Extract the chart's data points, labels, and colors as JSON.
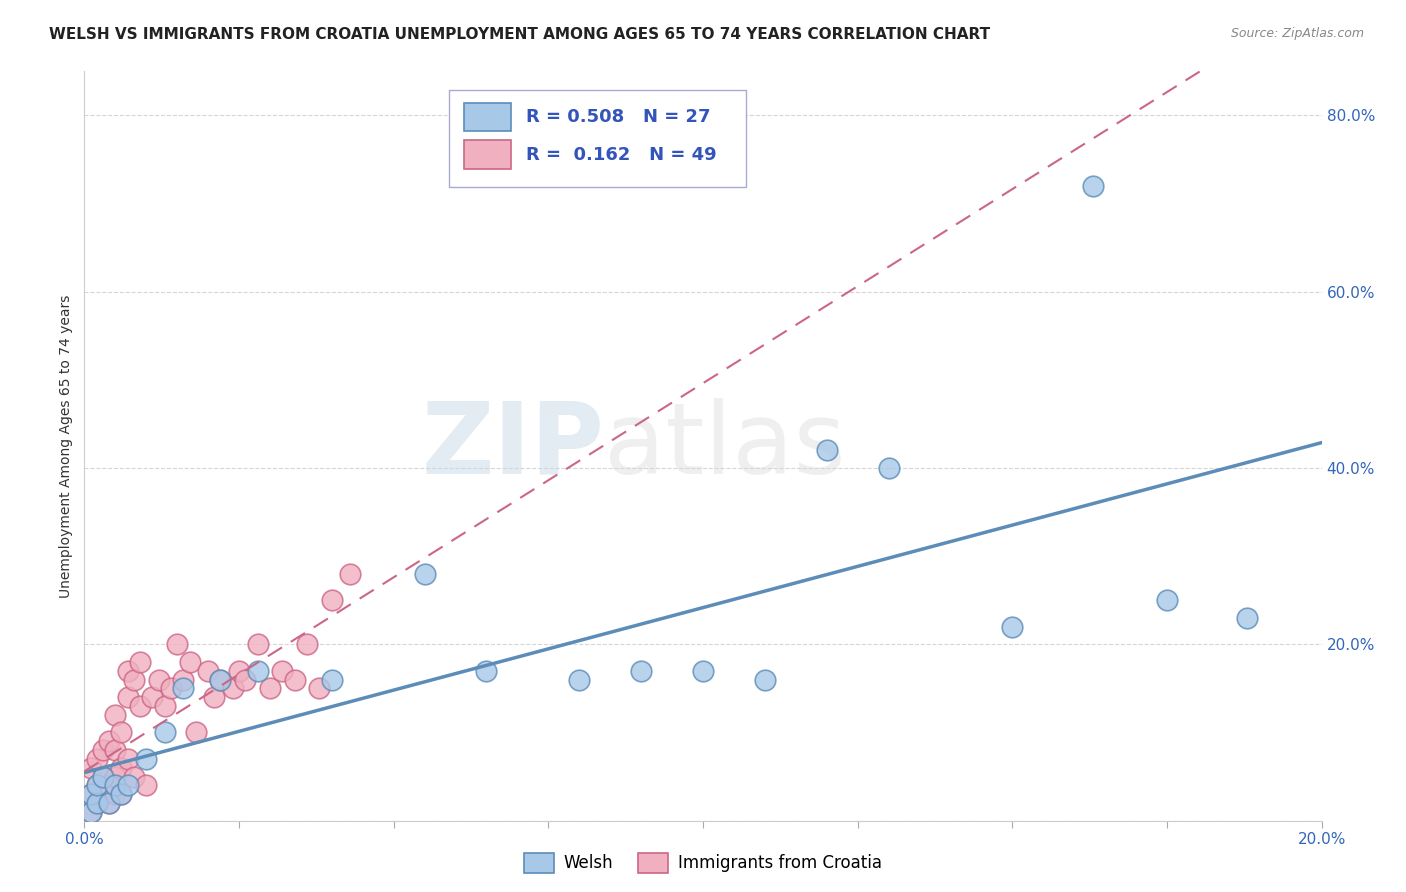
{
  "title": "WELSH VS IMMIGRANTS FROM CROATIA UNEMPLOYMENT AMONG AGES 65 TO 74 YEARS CORRELATION CHART",
  "source": "Source: ZipAtlas.com",
  "ylabel": "Unemployment Among Ages 65 to 74 years",
  "xlim": [
    0.0,
    0.2
  ],
  "ylim": [
    0.0,
    0.85
  ],
  "xticks": [
    0.0,
    0.025,
    0.05,
    0.075,
    0.1,
    0.125,
    0.15,
    0.175,
    0.2
  ],
  "yticks": [
    0.0,
    0.2,
    0.4,
    0.6,
    0.8
  ],
  "welsh_R": 0.508,
  "welsh_N": 27,
  "croatia_R": 0.162,
  "croatia_N": 49,
  "welsh_color": "#5B8DB8",
  "welsh_fill": "#A8C8E8",
  "croatia_color": "#CC6688",
  "croatia_fill": "#F0B0C0",
  "welsh_x": [
    0.001,
    0.001,
    0.002,
    0.002,
    0.003,
    0.004,
    0.005,
    0.006,
    0.007,
    0.01,
    0.013,
    0.016,
    0.022,
    0.028,
    0.04,
    0.055,
    0.065,
    0.08,
    0.09,
    0.1,
    0.11,
    0.12,
    0.13,
    0.15,
    0.163,
    0.175,
    0.188
  ],
  "welsh_y": [
    0.01,
    0.03,
    0.02,
    0.04,
    0.05,
    0.02,
    0.04,
    0.03,
    0.04,
    0.07,
    0.1,
    0.15,
    0.16,
    0.17,
    0.16,
    0.28,
    0.17,
    0.16,
    0.17,
    0.17,
    0.16,
    0.42,
    0.4,
    0.22,
    0.72,
    0.25,
    0.23
  ],
  "croatia_x": [
    0.001,
    0.001,
    0.001,
    0.002,
    0.002,
    0.002,
    0.003,
    0.003,
    0.003,
    0.004,
    0.004,
    0.004,
    0.005,
    0.005,
    0.005,
    0.005,
    0.006,
    0.006,
    0.006,
    0.007,
    0.007,
    0.007,
    0.008,
    0.008,
    0.009,
    0.009,
    0.01,
    0.011,
    0.012,
    0.013,
    0.014,
    0.015,
    0.016,
    0.017,
    0.018,
    0.02,
    0.021,
    0.022,
    0.024,
    0.025,
    0.026,
    0.028,
    0.03,
    0.032,
    0.034,
    0.036,
    0.038,
    0.04,
    0.043
  ],
  "croatia_y": [
    0.01,
    0.03,
    0.06,
    0.02,
    0.04,
    0.07,
    0.03,
    0.05,
    0.08,
    0.02,
    0.04,
    0.09,
    0.03,
    0.05,
    0.08,
    0.12,
    0.03,
    0.06,
    0.1,
    0.14,
    0.17,
    0.07,
    0.05,
    0.16,
    0.13,
    0.18,
    0.04,
    0.14,
    0.16,
    0.13,
    0.15,
    0.2,
    0.16,
    0.18,
    0.1,
    0.17,
    0.14,
    0.16,
    0.15,
    0.17,
    0.16,
    0.2,
    0.15,
    0.17,
    0.16,
    0.2,
    0.15,
    0.25,
    0.28
  ],
  "watermark_zip": "ZIP",
  "watermark_atlas": "atlas",
  "background_color": "#FFFFFF",
  "grid_color": "#CCCCCC",
  "title_fontsize": 11,
  "axis_label_fontsize": 10,
  "tick_fontsize": 11,
  "legend_fontsize": 13
}
